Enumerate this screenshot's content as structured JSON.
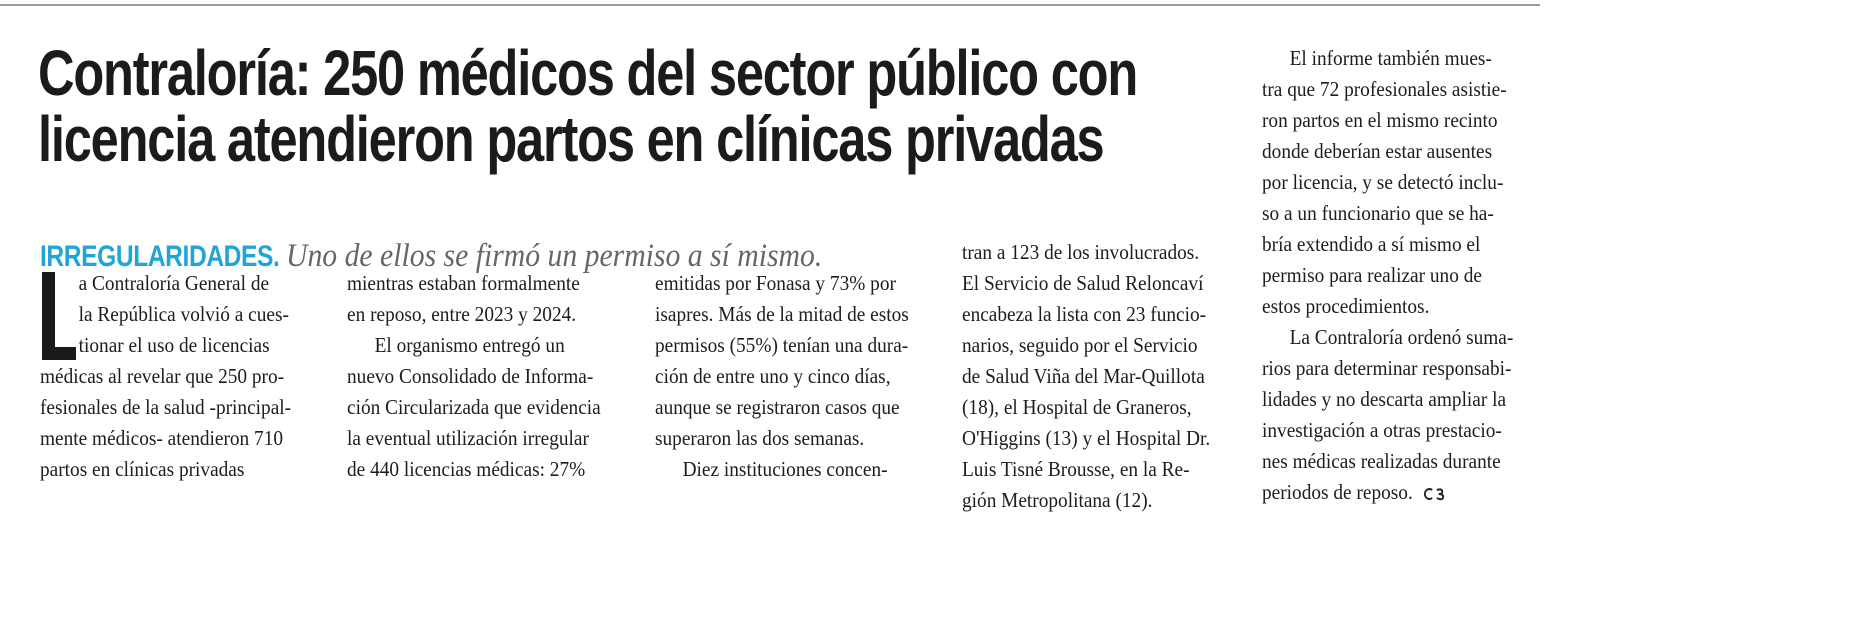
{
  "headline": {
    "lines": [
      "Contraloría: 250 médicos del sector público con",
      "licencia atendieron partos en clínicas privadas"
    ]
  },
  "subhead": {
    "kicker": "IRREGULARIDADES.",
    "deck": "Uno de ellos se firmó un permiso a sí mismo.",
    "kicker_color": "#22a4d8"
  },
  "body": {
    "drop_cap": "L",
    "col1": [
      "a Contraloría General de",
      "la República volvió a cues-",
      "tionar el uso de licencias",
      "médicas al revelar que 250 pro-",
      "fesionales de la salud -principal-",
      "mente médicos- atendieron 710",
      "partos   en   clínicas   privadas"
    ],
    "col2": [
      "mientras estaban formalmente",
      "en reposo, entre 2023 y 2024.",
      "El  organismo  entregó  un",
      "nuevo Consolidado de Informa-",
      "ción Circularizada que evidencia",
      "la eventual utilización irregular",
      "de 440 licencias médicas: 27%"
    ],
    "col3": [
      "emitidas por Fonasa y 73% por",
      "isapres. Más de la mitad de estos",
      "permisos (55%) tenían una dura-",
      "ción de entre uno y cinco días,",
      "aunque se registraron casos que",
      "superaron las dos semanas.",
      "Diez instituciones concen-"
    ],
    "col4": [
      "tran a 123 de los involucrados.",
      "El Servicio de Salud Reloncaví",
      "encabeza la lista con 23 funcio-",
      "narios, seguido por el Servicio",
      "de Salud Viña del Mar-Quillota",
      "(18), el Hospital de Graneros,",
      "O'Higgins (13) y el Hospital Dr.",
      "Luis Tisné Brousse, en la Re-",
      "gión Metropolitana (12)."
    ],
    "col5": [
      "El informe también mues-",
      "tra que 72 profesionales asistie-",
      "ron partos en el mismo recinto",
      "donde deberían estar ausentes",
      "por licencia, y se detectó inclu-",
      "so a un funcionario que se ha-",
      "bría extendido a sí mismo el",
      "permiso para realizar uno de",
      "estos procedimientos.",
      "La Contraloría ordenó suma-",
      "rios para determinar responsabi-",
      "lidades y no descarta ampliar la",
      "investigación a otras prestacio-",
      "nes médicas realizadas durante",
      "periodos de reposo."
    ],
    "end_mark_icon": "end-of-article-mark"
  }
}
